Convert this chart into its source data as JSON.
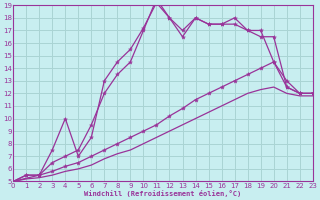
{
  "bg_color": "#c8eef0",
  "grid_color": "#aad4d4",
  "line_color": "#993399",
  "xlim": [
    0,
    23
  ],
  "ylim": [
    5,
    19
  ],
  "xticks": [
    0,
    1,
    2,
    3,
    4,
    5,
    6,
    7,
    8,
    9,
    10,
    11,
    12,
    13,
    14,
    15,
    16,
    17,
    18,
    19,
    20,
    21,
    22,
    23
  ],
  "yticks": [
    5,
    6,
    7,
    8,
    9,
    10,
    11,
    12,
    13,
    14,
    15,
    16,
    17,
    18,
    19
  ],
  "xlabel": "Windchill (Refroidissement éolien,°C)",
  "line1_x": [
    0,
    1,
    2,
    3,
    4,
    5,
    6,
    7,
    8,
    9,
    10,
    11,
    12,
    13,
    14,
    15,
    16,
    17,
    18,
    19,
    20,
    21,
    22,
    23
  ],
  "line1_y": [
    5.0,
    5.5,
    5.5,
    6.5,
    7.0,
    7.5,
    9.5,
    12.0,
    13.5,
    14.5,
    17.0,
    19.5,
    18.0,
    16.5,
    18.0,
    17.5,
    17.5,
    17.5,
    17.0,
    16.5,
    16.5,
    12.5,
    12.0,
    12.0
  ],
  "line2_x": [
    0,
    2,
    3,
    4,
    5,
    6,
    7,
    8,
    9,
    10,
    11,
    12,
    13,
    14,
    15,
    16,
    17,
    18,
    19,
    20,
    21,
    22,
    23
  ],
  "line2_y": [
    5.0,
    5.5,
    7.5,
    10.0,
    7.0,
    8.5,
    13.0,
    14.5,
    15.5,
    17.2,
    19.2,
    18.0,
    17.0,
    18.0,
    17.5,
    17.5,
    18.0,
    17.0,
    17.0,
    14.5,
    13.0,
    12.0,
    12.0
  ],
  "line3_x": [
    0,
    1,
    2,
    3,
    4,
    5,
    6,
    7,
    8,
    9,
    10,
    11,
    12,
    13,
    14,
    15,
    16,
    17,
    18,
    19,
    20,
    21,
    22,
    23
  ],
  "line3_y": [
    5.0,
    5.5,
    5.5,
    5.8,
    6.2,
    6.5,
    7.0,
    7.5,
    8.0,
    8.5,
    9.0,
    9.5,
    10.2,
    10.8,
    11.5,
    12.0,
    12.5,
    13.0,
    13.5,
    14.0,
    14.5,
    12.5,
    12.0,
    12.0
  ],
  "line4_x": [
    0,
    1,
    2,
    3,
    4,
    5,
    6,
    7,
    8,
    9,
    10,
    11,
    12,
    13,
    14,
    15,
    16,
    17,
    18,
    19,
    20,
    21,
    22,
    23
  ],
  "line4_y": [
    5.0,
    5.2,
    5.3,
    5.5,
    5.8,
    6.0,
    6.3,
    6.8,
    7.2,
    7.5,
    8.0,
    8.5,
    9.0,
    9.5,
    10.0,
    10.5,
    11.0,
    11.5,
    12.0,
    12.3,
    12.5,
    12.0,
    11.8,
    11.8
  ]
}
